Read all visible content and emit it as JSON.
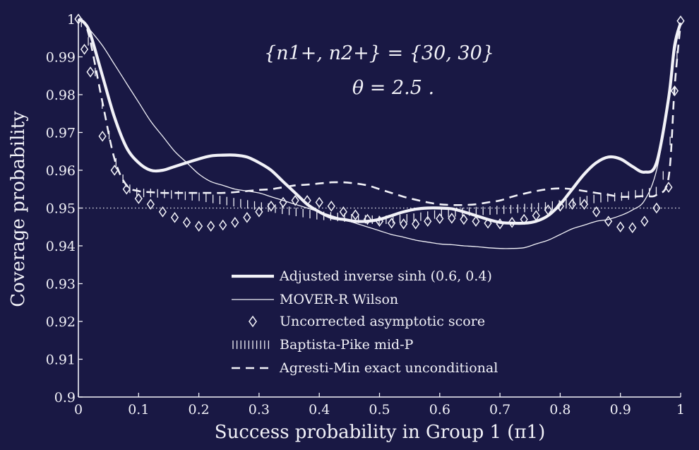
{
  "chart_data": {
    "type": "line",
    "xlabel": "Success probability in Group 1 (π1)",
    "ylabel": "Coverage probability",
    "xlim": [
      0,
      1
    ],
    "ylim": [
      0.9,
      1.0
    ],
    "x_ticks": [
      "0",
      "0.1",
      "0.2",
      "0.3",
      "0.4",
      "0.5",
      "0.6",
      "0.7",
      "0.8",
      "0.9",
      "1"
    ],
    "y_ticks": [
      "0.9",
      "0.91",
      "0.92",
      "0.93",
      "0.94",
      "0.95",
      "0.96",
      "0.97",
      "0.98",
      "0.99",
      "1"
    ],
    "reference_line": 0.95,
    "annotations": [
      "{n1+, n2+} = {30, 30}",
      "θ = 2.5  ."
    ],
    "legend_placement": "bottom-center",
    "grid": false,
    "colors": {
      "background": "#191844",
      "foreground": "#f2f2f8"
    },
    "x": [
      0,
      0.01,
      0.02,
      0.04,
      0.06,
      0.08,
      0.1,
      0.12,
      0.14,
      0.16,
      0.18,
      0.2,
      0.22,
      0.24,
      0.26,
      0.28,
      0.3,
      0.32,
      0.34,
      0.36,
      0.38,
      0.4,
      0.42,
      0.44,
      0.46,
      0.48,
      0.5,
      0.52,
      0.54,
      0.56,
      0.58,
      0.6,
      0.62,
      0.64,
      0.66,
      0.68,
      0.7,
      0.72,
      0.74,
      0.76,
      0.78,
      0.8,
      0.82,
      0.84,
      0.86,
      0.88,
      0.9,
      0.92,
      0.94,
      0.96,
      0.98,
      0.99,
      1
    ],
    "series": [
      {
        "name": "Adjusted inverse sinh (0.6, 0.4)",
        "style": "thick",
        "values": [
          1.0,
          0.999,
          0.996,
          0.985,
          0.974,
          0.966,
          0.962,
          0.96,
          0.96,
          0.961,
          0.962,
          0.963,
          0.9638,
          0.964,
          0.964,
          0.9635,
          0.962,
          0.96,
          0.957,
          0.954,
          0.951,
          0.949,
          0.9475,
          0.947,
          0.9465,
          0.9465,
          0.947,
          0.948,
          0.949,
          0.9497,
          0.95,
          0.95,
          0.9498,
          0.949,
          0.948,
          0.947,
          0.9462,
          0.946,
          0.946,
          0.9465,
          0.948,
          0.951,
          0.955,
          0.959,
          0.962,
          0.9635,
          0.963,
          0.961,
          0.9595,
          0.962,
          0.979,
          0.993,
          0.999
        ]
      },
      {
        "name": "MOVER-R Wilson",
        "style": "thin",
        "values": [
          1.0,
          0.999,
          0.997,
          0.993,
          0.988,
          0.983,
          0.978,
          0.973,
          0.969,
          0.965,
          0.962,
          0.959,
          0.957,
          0.956,
          0.955,
          0.9545,
          0.954,
          0.953,
          0.952,
          0.951,
          0.95,
          0.949,
          0.948,
          0.947,
          0.946,
          0.945,
          0.944,
          0.943,
          0.9423,
          0.9415,
          0.941,
          0.9405,
          0.9403,
          0.94,
          0.9398,
          0.9395,
          0.9393,
          0.9393,
          0.9395,
          0.9405,
          0.9415,
          0.943,
          0.9445,
          0.9455,
          0.9465,
          0.947,
          0.948,
          0.9495,
          0.952,
          0.96,
          0.978,
          0.991,
          0.999
        ]
      },
      {
        "name": "Uncorrected asymptotic score",
        "style": "diamond",
        "values": [
          1.0,
          0.992,
          0.986,
          0.969,
          0.96,
          0.955,
          0.9525,
          0.951,
          0.949,
          0.9475,
          0.9462,
          0.9452,
          0.9452,
          0.9455,
          0.9462,
          0.9475,
          0.949,
          0.9505,
          0.9515,
          0.952,
          0.952,
          0.9515,
          0.9505,
          0.949,
          0.9482,
          0.947,
          0.9465,
          0.946,
          0.9458,
          0.9458,
          0.9465,
          0.9472,
          0.9473,
          0.947,
          0.9465,
          0.946,
          0.9458,
          0.9462,
          0.947,
          0.948,
          0.9495,
          0.9505,
          0.951,
          0.951,
          0.949,
          0.9465,
          0.945,
          0.9448,
          0.9465,
          0.95,
          0.9555,
          0.981,
          0.9995
        ]
      },
      {
        "name": "Baptista-Pike mid-P",
        "style": "dashes-vertical",
        "values": [
          1.0,
          0.998,
          0.992,
          0.977,
          0.963,
          0.9555,
          0.954,
          0.954,
          0.9538,
          0.9535,
          0.9532,
          0.953,
          0.9525,
          0.952,
          0.9515,
          0.951,
          0.9505,
          0.95,
          0.9495,
          0.949,
          0.9485,
          0.948,
          0.9478,
          0.9475,
          0.9472,
          0.947,
          0.9468,
          0.947,
          0.9472,
          0.9475,
          0.948,
          0.9485,
          0.9488,
          0.949,
          0.9492,
          0.9493,
          0.9495,
          0.9497,
          0.95,
          0.9502,
          0.9505,
          0.951,
          0.9515,
          0.952,
          0.9525,
          0.9528,
          0.953,
          0.9535,
          0.954,
          0.9545,
          0.962,
          0.985,
          0.9985
        ]
      },
      {
        "name": "Agresti-Min exact unconditional",
        "style": "dashed",
        "values": [
          1.0,
          0.999,
          0.994,
          0.978,
          0.963,
          0.956,
          0.9545,
          0.9542,
          0.954,
          0.954,
          0.954,
          0.954,
          0.954,
          0.954,
          0.9542,
          0.9545,
          0.9548,
          0.955,
          0.9555,
          0.956,
          0.9562,
          0.9565,
          0.9568,
          0.9568,
          0.9565,
          0.956,
          0.955,
          0.954,
          0.953,
          0.9522,
          0.9515,
          0.951,
          0.9508,
          0.9508,
          0.951,
          0.9515,
          0.952,
          0.953,
          0.9538,
          0.9545,
          0.955,
          0.9552,
          0.955,
          0.9545,
          0.954,
          0.9535,
          0.953,
          0.953,
          0.9532,
          0.9535,
          0.958,
          0.982,
          0.999
        ]
      }
    ]
  }
}
